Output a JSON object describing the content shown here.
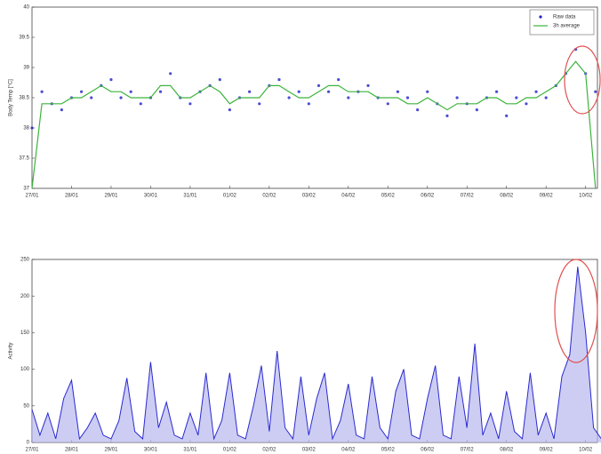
{
  "chart_data": [
    {
      "type": "line",
      "ylabel": "Body Temp [°C]",
      "xlim": [
        0,
        14.3
      ],
      "ylim": [
        37,
        40
      ],
      "xticks": [
        {
          "value": 0,
          "label": "27/01"
        },
        {
          "value": 1,
          "label": "28/01"
        },
        {
          "value": 2,
          "label": "29/01"
        },
        {
          "value": 3,
          "label": "30/01"
        },
        {
          "value": 4,
          "label": "31/01"
        },
        {
          "value": 5,
          "label": "01/02"
        },
        {
          "value": 6,
          "label": "02/02"
        },
        {
          "value": 7,
          "label": "03/02"
        },
        {
          "value": 8,
          "label": "04/02"
        },
        {
          "value": 9,
          "label": "05/02"
        },
        {
          "value": 10,
          "label": "06/02"
        },
        {
          "value": 11,
          "label": "07/02"
        },
        {
          "value": 12,
          "label": "08/02"
        },
        {
          "value": 13,
          "label": "09/02"
        },
        {
          "value": 14,
          "label": "10/02"
        }
      ],
      "yticks": [
        37,
        37.5,
        38,
        38.5,
        39,
        39.5,
        40
      ],
      "legend": "upper right",
      "x": [
        0,
        0.25,
        0.5,
        0.75,
        1,
        1.25,
        1.5,
        1.75,
        2,
        2.25,
        2.5,
        2.75,
        3,
        3.25,
        3.5,
        3.75,
        4,
        4.25,
        4.5,
        4.75,
        5,
        5.25,
        5.5,
        5.75,
        6,
        6.25,
        6.5,
        6.75,
        7,
        7.25,
        7.5,
        7.75,
        8,
        8.25,
        8.5,
        8.75,
        9,
        9.25,
        9.5,
        9.75,
        10,
        10.25,
        10.5,
        10.75,
        11,
        11.25,
        11.5,
        11.75,
        12,
        12.25,
        12.5,
        12.75,
        13,
        13.25,
        13.5,
        13.75,
        14,
        14.25
      ],
      "series": [
        {
          "name": "Raw data",
          "color": "#1f1fc8",
          "mode": "markers",
          "values": [
            38.0,
            38.6,
            38.4,
            38.3,
            38.5,
            38.6,
            38.5,
            38.7,
            38.8,
            38.5,
            38.6,
            38.4,
            38.5,
            38.6,
            38.9,
            38.5,
            38.4,
            38.6,
            38.7,
            38.8,
            38.3,
            38.5,
            38.6,
            38.4,
            38.7,
            38.8,
            38.5,
            38.6,
            38.4,
            38.7,
            38.6,
            38.8,
            38.5,
            38.6,
            38.7,
            38.5,
            38.4,
            38.6,
            38.5,
            38.3,
            38.6,
            38.4,
            38.2,
            38.5,
            38.4,
            38.3,
            38.5,
            38.6,
            38.2,
            38.5,
            38.4,
            38.6,
            38.5,
            38.7,
            38.9,
            39.3,
            38.9,
            38.6
          ]
        },
        {
          "name": "3h average",
          "color": "#3cb43c",
          "mode": "line",
          "values": [
            37.0,
            38.4,
            38.4,
            38.4,
            38.5,
            38.5,
            38.6,
            38.7,
            38.6,
            38.6,
            38.5,
            38.5,
            38.5,
            38.7,
            38.7,
            38.5,
            38.5,
            38.6,
            38.7,
            38.6,
            38.4,
            38.5,
            38.5,
            38.5,
            38.7,
            38.7,
            38.6,
            38.5,
            38.5,
            38.6,
            38.7,
            38.7,
            38.6,
            38.6,
            38.6,
            38.5,
            38.5,
            38.5,
            38.4,
            38.4,
            38.5,
            38.4,
            38.3,
            38.4,
            38.4,
            38.4,
            38.5,
            38.5,
            38.4,
            38.4,
            38.5,
            38.5,
            38.6,
            38.7,
            38.9,
            39.1,
            38.9,
            37.0
          ]
        }
      ]
    },
    {
      "type": "line",
      "ylabel": "Activity",
      "xlim": [
        0,
        14.3
      ],
      "ylim": [
        0,
        250
      ],
      "xticks": [
        {
          "value": 0,
          "label": "27/01"
        },
        {
          "value": 1,
          "label": "28/01"
        },
        {
          "value": 2,
          "label": "29/01"
        },
        {
          "value": 3,
          "label": "30/01"
        },
        {
          "value": 4,
          "label": "31/01"
        },
        {
          "value": 5,
          "label": "01/02"
        },
        {
          "value": 6,
          "label": "02/02"
        },
        {
          "value": 7,
          "label": "03/02"
        },
        {
          "value": 8,
          "label": "04/02"
        },
        {
          "value": 9,
          "label": "05/02"
        },
        {
          "value": 10,
          "label": "06/02"
        },
        {
          "value": 11,
          "label": "07/02"
        },
        {
          "value": 12,
          "label": "08/02"
        },
        {
          "value": 13,
          "label": "09/02"
        },
        {
          "value": 14,
          "label": "10/02"
        }
      ],
      "yticks": [
        0,
        50,
        100,
        150,
        200,
        250
      ],
      "x": [
        0,
        0.2,
        0.4,
        0.6,
        0.8,
        1,
        1.2,
        1.4,
        1.6,
        1.8,
        2,
        2.2,
        2.4,
        2.6,
        2.8,
        3,
        3.2,
        3.4,
        3.6,
        3.8,
        4,
        4.2,
        4.4,
        4.6,
        4.8,
        5,
        5.2,
        5.4,
        5.6,
        5.8,
        6,
        6.2,
        6.4,
        6.6,
        6.8,
        7,
        7.2,
        7.4,
        7.6,
        7.8,
        8,
        8.2,
        8.4,
        8.6,
        8.8,
        9,
        9.2,
        9.4,
        9.6,
        9.8,
        10,
        10.2,
        10.4,
        10.6,
        10.8,
        11,
        11.2,
        11.4,
        11.6,
        11.8,
        12,
        12.2,
        12.4,
        12.6,
        12.8,
        13,
        13.2,
        13.4,
        13.6,
        13.8,
        14,
        14.2,
        14.4
      ],
      "series": [
        {
          "color": "#2a2ad0",
          "mode": "area",
          "values": [
            45,
            10,
            40,
            5,
            60,
            85,
            5,
            20,
            40,
            10,
            5,
            30,
            88,
            15,
            5,
            110,
            20,
            55,
            10,
            5,
            40,
            10,
            95,
            5,
            30,
            95,
            10,
            5,
            50,
            105,
            15,
            125,
            20,
            5,
            90,
            10,
            60,
            95,
            5,
            30,
            80,
            10,
            5,
            90,
            20,
            5,
            70,
            100,
            10,
            5,
            60,
            105,
            10,
            5,
            90,
            20,
            135,
            10,
            40,
            5,
            70,
            15,
            5,
            95,
            10,
            40,
            5,
            90,
            120,
            240,
            150,
            20,
            5
          ]
        }
      ]
    }
  ]
}
